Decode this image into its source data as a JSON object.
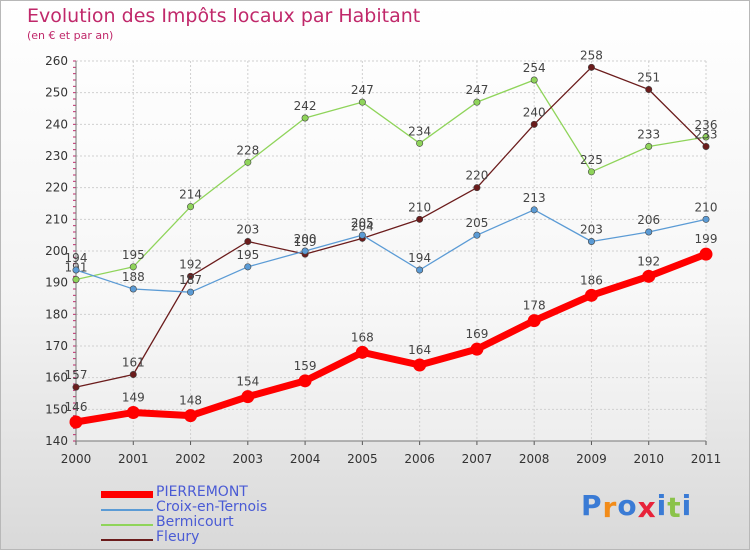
{
  "chart_data": {
    "type": "line",
    "title": "Evolution des Impôts locaux par Habitant",
    "subtitle": "(en € et par an)",
    "xlabel": "",
    "ylabel": "",
    "ylim": [
      140,
      260
    ],
    "yticks": [
      140,
      150,
      160,
      170,
      180,
      190,
      200,
      210,
      220,
      230,
      240,
      250,
      260
    ],
    "categories": [
      "2000",
      "2001",
      "2002",
      "2003",
      "2004",
      "2005",
      "2006",
      "2007",
      "2008",
      "2009",
      "2010",
      "2011"
    ],
    "grid": true,
    "legend_position": "bottom-left",
    "series": [
      {
        "name": "Bermicourt",
        "color": "#8fd45a",
        "values": [
          191,
          195,
          214,
          228,
          242,
          247,
          234,
          247,
          254,
          225,
          233,
          236
        ]
      },
      {
        "name": "Fleury",
        "color": "#6b1c1c",
        "values": [
          157,
          161,
          192,
          203,
          199,
          204,
          210,
          220,
          240,
          258,
          251,
          233
        ]
      },
      {
        "name": "Croix-en-Ternois",
        "color": "#5b9bd5",
        "values": [
          194,
          188,
          187,
          195,
          200,
          205,
          194,
          205,
          213,
          203,
          206,
          210
        ]
      },
      {
        "name": "PIERREMONT",
        "color": "#ff0000",
        "values": [
          146,
          149,
          148,
          154,
          159,
          168,
          164,
          169,
          178,
          186,
          192,
          199
        ]
      }
    ],
    "legend_order": [
      "PIERREMONT",
      "Croix-en-Ternois",
      "Bermicourt",
      "Fleury"
    ]
  },
  "logo": {
    "letters": [
      "P",
      "r",
      "o",
      "x",
      "i",
      "t",
      "i"
    ],
    "colors": [
      "#3a7bd5",
      "#f28c1a",
      "#3a7bd5",
      "#e8233a",
      "#3a7bd5",
      "#8bc34a",
      "#3a7bd5"
    ]
  }
}
